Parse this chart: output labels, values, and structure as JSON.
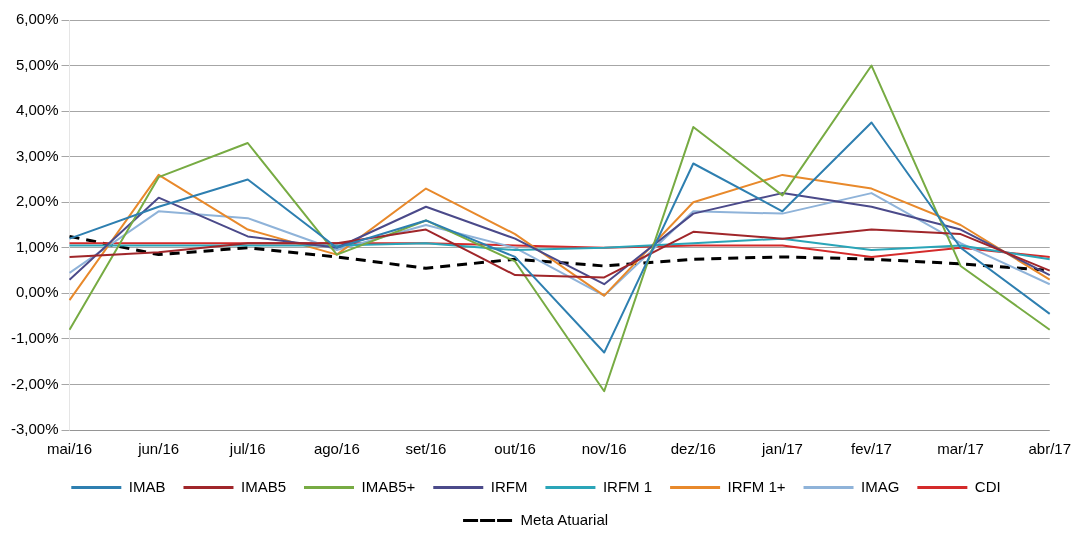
{
  "chart_data": {
    "type": "line",
    "categories": [
      "mai/16",
      "jun/16",
      "jul/16",
      "ago/16",
      "set/16",
      "out/16",
      "nov/16",
      "dez/16",
      "jan/17",
      "fev/17",
      "mar/17",
      "abr/17"
    ],
    "ylim": [
      -3,
      6
    ],
    "yticks": [
      {
        "value": -3,
        "label": "-3,00%"
      },
      {
        "value": -2,
        "label": "-2,00%"
      },
      {
        "value": -1,
        "label": "-1,00%"
      },
      {
        "value": 0,
        "label": "0,00%"
      },
      {
        "value": 1,
        "label": "1,00%"
      },
      {
        "value": 2,
        "label": "2,00%"
      },
      {
        "value": 3,
        "label": "3,00%"
      },
      {
        "value": 4,
        "label": "4,00%"
      },
      {
        "value": 5,
        "label": "5,00%"
      },
      {
        "value": 6,
        "label": "6,00%"
      }
    ],
    "grid": "y",
    "legend": "bottom",
    "marker": "none",
    "line_style": "solid",
    "series": [
      {
        "name": "IMAB",
        "color": "#2e7fb0",
        "values": [
          1.2,
          1.9,
          2.5,
          1.0,
          1.6,
          0.8,
          -1.3,
          2.85,
          1.8,
          3.75,
          1.0,
          -0.45
        ]
      },
      {
        "name": "IMAB5",
        "color": "#a0262a",
        "values": [
          0.8,
          0.9,
          1.1,
          1.1,
          1.4,
          0.4,
          0.35,
          1.35,
          1.2,
          1.4,
          1.3,
          0.5
        ]
      },
      {
        "name": "IMAB5+",
        "color": "#77ab43",
        "values": [
          -0.8,
          2.55,
          3.3,
          0.85,
          1.6,
          0.7,
          -2.15,
          3.65,
          2.15,
          5.0,
          0.6,
          -0.8
        ]
      },
      {
        "name": "IRFM",
        "color": "#4b4a8a",
        "values": [
          0.3,
          2.1,
          1.25,
          1.0,
          1.9,
          1.2,
          0.2,
          1.75,
          2.2,
          1.9,
          1.4,
          0.4
        ]
      },
      {
        "name": "IRFM 1",
        "color": "#2aa5b8",
        "values": [
          1.05,
          1.05,
          1.05,
          1.05,
          1.1,
          0.95,
          1.0,
          1.1,
          1.2,
          0.95,
          1.05,
          0.75
        ]
      },
      {
        "name": "IRFM 1+",
        "color": "#e8892b",
        "values": [
          -0.15,
          2.6,
          1.4,
          0.85,
          2.3,
          1.3,
          -0.05,
          2.0,
          2.6,
          2.3,
          1.5,
          0.3
        ]
      },
      {
        "name": "IMAG",
        "color": "#8fb3d9",
        "values": [
          0.45,
          1.8,
          1.65,
          0.95,
          1.5,
          1.0,
          -0.05,
          1.8,
          1.75,
          2.2,
          1.1,
          0.2
        ]
      },
      {
        "name": "CDI",
        "color": "#d42a2a",
        "values": [
          1.1,
          1.1,
          1.1,
          1.1,
          1.1,
          1.05,
          1.0,
          1.05,
          1.05,
          0.8,
          1.0,
          0.8
        ]
      },
      {
        "name": "Meta Atuarial",
        "color": "#000000",
        "line_style": "dashed",
        "values": [
          1.25,
          0.85,
          1.0,
          0.8,
          0.55,
          0.75,
          0.6,
          0.75,
          0.8,
          0.75,
          0.65,
          0.5
        ]
      }
    ]
  }
}
